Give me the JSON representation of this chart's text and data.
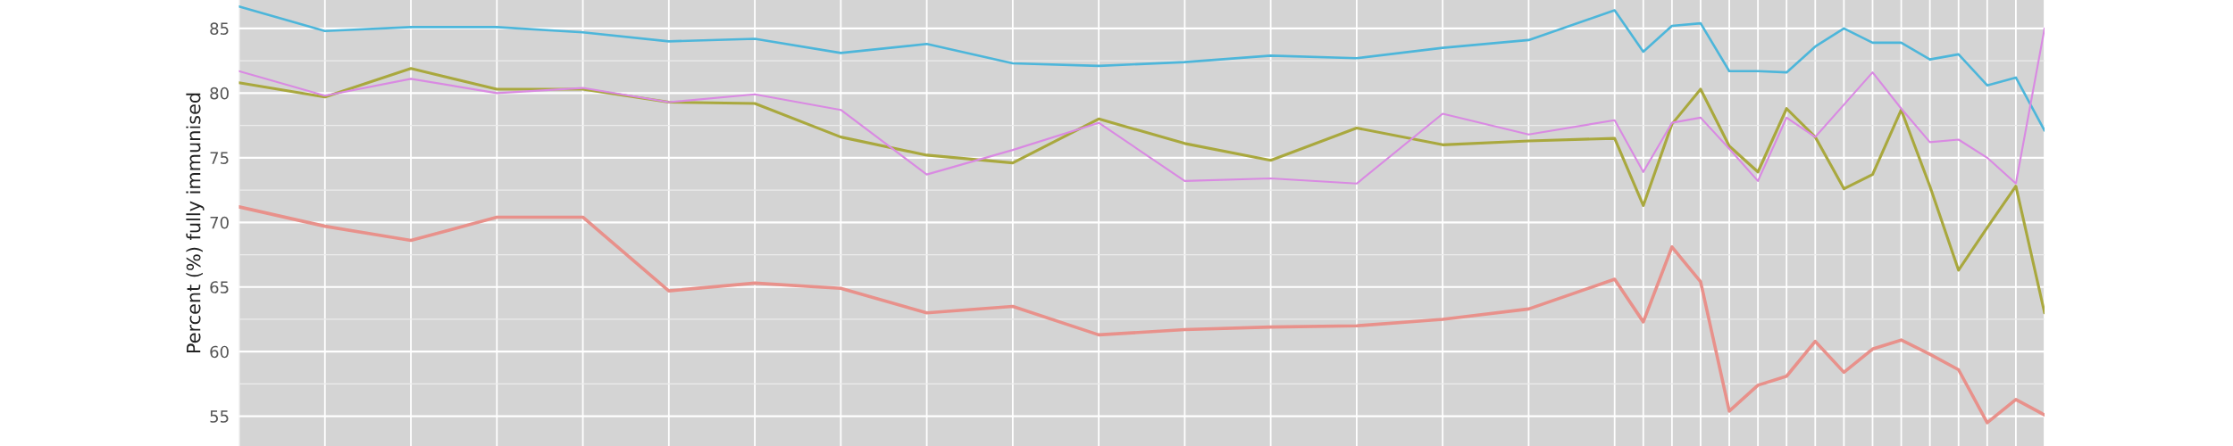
{
  "chart_data": {
    "type": "line",
    "ylabel": "Percent (%) fully immunised",
    "categories": [
      null,
      null,
      null,
      null,
      null,
      null,
      null,
      null,
      null,
      null,
      null,
      null,
      null,
      null,
      null,
      null,
      null,
      null,
      null,
      null,
      null,
      null,
      null,
      null,
      null,
      null,
      null,
      null,
      null,
      null,
      null,
      null,
      null,
      null,
      null,
      null,
      null,
      null,
      null,
      null,
      null,
      null,
      null,
      null,
      null,
      null,
      null,
      null,
      null,
      null,
      null,
      null,
      null,
      null,
      null,
      null,
      null,
      null,
      null,
      null,
      null,
      null,
      null,
      null
    ],
    "series": [
      {
        "color": "#e8918b",
        "values": [
          71.2,
          null,
          null,
          69.7,
          null,
          null,
          68.6,
          null,
          null,
          70.4,
          null,
          null,
          70.4,
          null,
          null,
          64.7,
          null,
          null,
          65.3,
          null,
          null,
          64.9,
          null,
          null,
          63.0,
          null,
          null,
          63.5,
          null,
          null,
          61.3,
          null,
          null,
          61.7,
          null,
          null,
          61.9,
          null,
          null,
          62.0,
          null,
          null,
          62.5,
          null,
          null,
          63.3,
          null,
          null,
          65.6,
          62.3,
          68.1,
          65.4,
          55.4,
          57.4,
          58.1,
          60.8,
          58.4,
          60.2,
          60.9,
          59.8,
          58.6,
          54.5,
          56.3,
          55.1
        ]
      },
      {
        "color": "#a9a83e",
        "values": [
          80.8,
          null,
          null,
          79.7,
          null,
          null,
          81.9,
          null,
          null,
          80.3,
          null,
          null,
          80.3,
          null,
          null,
          79.3,
          null,
          null,
          79.2,
          null,
          null,
          76.6,
          null,
          null,
          75.2,
          null,
          null,
          74.6,
          null,
          null,
          78.0,
          null,
          null,
          76.1,
          null,
          null,
          74.8,
          null,
          null,
          77.3,
          null,
          null,
          76.0,
          null,
          null,
          76.3,
          null,
          null,
          76.5,
          71.3,
          77.6,
          80.3,
          75.9,
          73.9,
          78.8,
          76.6,
          72.6,
          73.7,
          78.7,
          72.8,
          66.3,
          69.6,
          72.8,
          63.0
        ]
      },
      {
        "color": "#4db6da",
        "values": [
          86.7,
          null,
          null,
          84.8,
          null,
          null,
          85.1,
          null,
          null,
          85.1,
          null,
          null,
          84.7,
          null,
          null,
          84.0,
          null,
          null,
          84.2,
          null,
          null,
          83.1,
          null,
          null,
          83.8,
          null,
          null,
          82.3,
          null,
          null,
          82.1,
          null,
          null,
          82.4,
          null,
          null,
          82.9,
          null,
          null,
          82.7,
          null,
          null,
          83.5,
          null,
          null,
          84.1,
          null,
          null,
          86.4,
          83.2,
          85.2,
          85.4,
          81.7,
          81.7,
          81.6,
          83.6,
          85.0,
          83.9,
          83.9,
          82.6,
          83.0,
          80.6,
          81.2,
          77.1
        ]
      },
      {
        "color": "#d98ae2",
        "values": [
          81.7,
          null,
          null,
          79.8,
          null,
          null,
          81.1,
          null,
          null,
          80.0,
          null,
          null,
          80.4,
          null,
          null,
          79.3,
          null,
          null,
          79.9,
          null,
          null,
          78.7,
          null,
          null,
          73.7,
          null,
          null,
          75.6,
          null,
          null,
          77.7,
          null,
          null,
          73.2,
          null,
          null,
          73.4,
          null,
          null,
          73.0,
          null,
          null,
          78.4,
          null,
          null,
          76.8,
          null,
          null,
          77.9,
          73.9,
          77.7,
          78.1,
          75.7,
          73.2,
          78.1,
          76.6,
          79.1,
          81.6,
          78.8,
          76.2,
          76.4,
          75.0,
          73.0,
          85.0
        ]
      }
    ],
    "ylim": [
      52.7,
      87.2
    ],
    "yticks": [
      55,
      60,
      65,
      70,
      75,
      80,
      85
    ],
    "grid": true,
    "tick_labels": "y"
  }
}
